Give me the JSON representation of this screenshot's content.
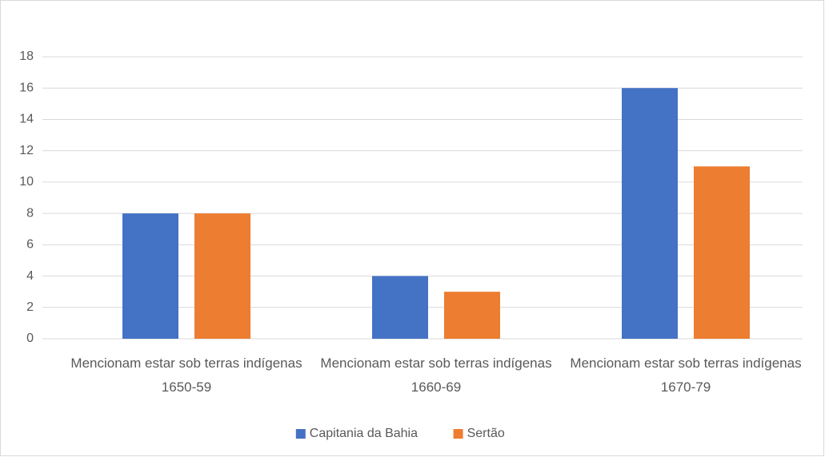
{
  "chart_data": {
    "type": "bar",
    "categories": [
      "Mencionam estar sob terras indígenas 1650-59",
      "Mencionam estar sob terras indígenas 1660-69",
      "Mencionam estar sob terras indígenas 1670-79"
    ],
    "series": [
      {
        "name": "Capitania da Bahia",
        "color": "#4472c4",
        "values": [
          8,
          4,
          16
        ]
      },
      {
        "name": "Sertão",
        "color": "#ed7d31",
        "values": [
          8,
          3,
          11
        ]
      }
    ],
    "ylim": [
      0,
      18
    ],
    "yticks": [
      0,
      2,
      4,
      6,
      8,
      10,
      12,
      14,
      16,
      18
    ],
    "grid": true,
    "legend": "bottom"
  }
}
